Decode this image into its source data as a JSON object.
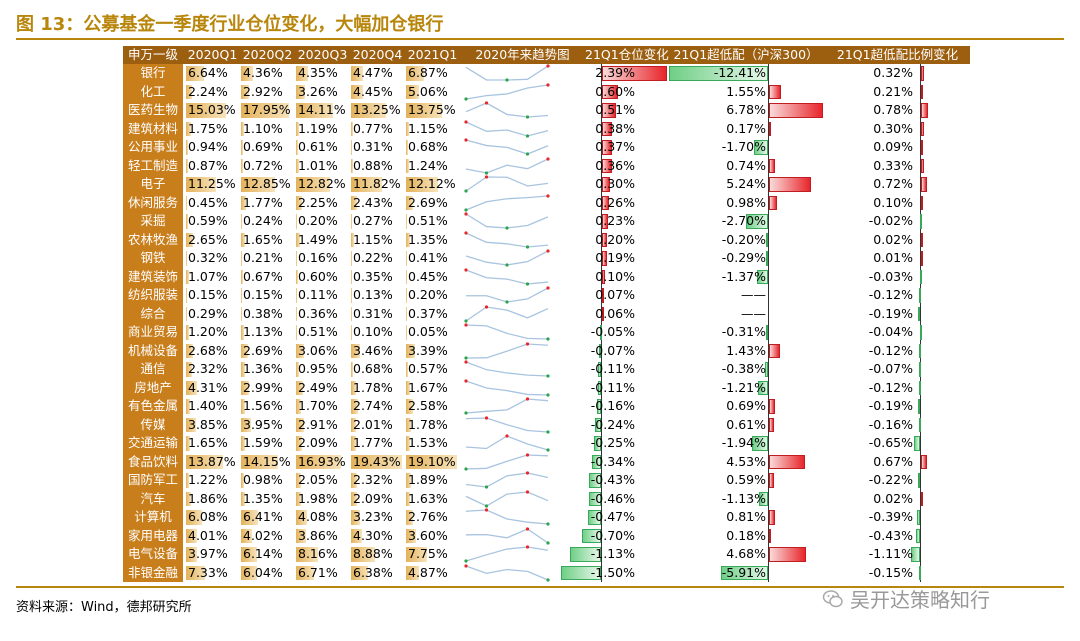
{
  "title": "图 13：公募基金一季度行业仓位变化，大幅加仓银行",
  "source": "资料来源：Wind，德邦研究所",
  "watermark": "吴开达策略知行",
  "headers": [
    "申万一级",
    "2020Q1",
    "2020Q2",
    "2020Q3",
    "2020Q4",
    "2021Q1",
    "2020年来趋势图",
    "21Q1仓位变化",
    "21Q1超低配（沪深300）",
    "21Q1超低配比例变化"
  ],
  "colors": {
    "header_bg": "#9c5f10",
    "industry_bg": "#c97e1c",
    "quarter_bar": "#e3b25a",
    "positive_bar": "#e8262b",
    "negative_bar": "#6fcf86",
    "trend_line": "#a8c4e0",
    "trend_max": "#e8262b",
    "trend_min": "#2ca44e"
  },
  "rows": [
    {
      "name": "银行",
      "q": [
        "6.64%",
        "4.36%",
        "4.35%",
        "4.47%",
        "6.87%"
      ],
      "qv": [
        6.64,
        4.36,
        4.35,
        4.47,
        6.87
      ],
      "chg": "2.39%",
      "chg_v": 2.39,
      "ow": "-12.41%",
      "ow_v": -12.41,
      "owc": "0.32%",
      "owc_v": 0.32
    },
    {
      "name": "化工",
      "q": [
        "2.24%",
        "2.92%",
        "3.26%",
        "4.45%",
        "5.06%"
      ],
      "qv": [
        2.24,
        2.92,
        3.26,
        4.45,
        5.06
      ],
      "chg": "0.60%",
      "chg_v": 0.6,
      "ow": "1.55%",
      "ow_v": 1.55,
      "owc": "0.21%",
      "owc_v": 0.21
    },
    {
      "name": "医药生物",
      "q": [
        "15.03%",
        "17.95%",
        "14.11%",
        "13.25%",
        "13.75%"
      ],
      "qv": [
        15.03,
        17.95,
        14.11,
        13.25,
        13.75
      ],
      "chg": "0.51%",
      "chg_v": 0.51,
      "ow": "6.78%",
      "ow_v": 6.78,
      "owc": "0.78%",
      "owc_v": 0.78
    },
    {
      "name": "建筑材料",
      "q": [
        "1.75%",
        "1.10%",
        "1.19%",
        "0.77%",
        "1.15%"
      ],
      "qv": [
        1.75,
        1.1,
        1.19,
        0.77,
        1.15
      ],
      "chg": "0.38%",
      "chg_v": 0.38,
      "ow": "0.17%",
      "ow_v": 0.17,
      "owc": "0.30%",
      "owc_v": 0.3
    },
    {
      "name": "公用事业",
      "q": [
        "0.94%",
        "0.69%",
        "0.61%",
        "0.31%",
        "0.68%"
      ],
      "qv": [
        0.94,
        0.69,
        0.61,
        0.31,
        0.68
      ],
      "chg": "0.37%",
      "chg_v": 0.37,
      "ow": "-1.70%",
      "ow_v": -1.7,
      "owc": "0.09%",
      "owc_v": 0.09
    },
    {
      "name": "轻工制造",
      "q": [
        "0.87%",
        "0.72%",
        "1.01%",
        "0.88%",
        "1.24%"
      ],
      "qv": [
        0.87,
        0.72,
        1.01,
        0.88,
        1.24
      ],
      "chg": "0.36%",
      "chg_v": 0.36,
      "ow": "0.74%",
      "ow_v": 0.74,
      "owc": "0.33%",
      "owc_v": 0.33
    },
    {
      "name": "电子",
      "q": [
        "11.25%",
        "12.85%",
        "12.82%",
        "11.82%",
        "12.12%"
      ],
      "qv": [
        11.25,
        12.85,
        12.82,
        11.82,
        12.12
      ],
      "chg": "0.30%",
      "chg_v": 0.3,
      "ow": "5.24%",
      "ow_v": 5.24,
      "owc": "0.72%",
      "owc_v": 0.72
    },
    {
      "name": "休闲服务",
      "q": [
        "0.45%",
        "1.77%",
        "2.25%",
        "2.43%",
        "2.69%"
      ],
      "qv": [
        0.45,
        1.77,
        2.25,
        2.43,
        2.69
      ],
      "chg": "0.26%",
      "chg_v": 0.26,
      "ow": "0.98%",
      "ow_v": 0.98,
      "owc": "0.10%",
      "owc_v": 0.1
    },
    {
      "name": "采掘",
      "q": [
        "0.59%",
        "0.24%",
        "0.20%",
        "0.27%",
        "0.51%"
      ],
      "qv": [
        0.59,
        0.24,
        0.2,
        0.27,
        0.51
      ],
      "chg": "0.23%",
      "chg_v": 0.23,
      "ow": "-2.70%",
      "ow_v": -2.7,
      "owc": "-0.02%",
      "owc_v": -0.02
    },
    {
      "name": "农林牧渔",
      "q": [
        "2.65%",
        "1.65%",
        "1.49%",
        "1.15%",
        "1.35%"
      ],
      "qv": [
        2.65,
        1.65,
        1.49,
        1.15,
        1.35
      ],
      "chg": "0.20%",
      "chg_v": 0.2,
      "ow": "-0.20%",
      "ow_v": -0.2,
      "owc": "0.02%",
      "owc_v": 0.02
    },
    {
      "name": "钢铁",
      "q": [
        "0.32%",
        "0.21%",
        "0.16%",
        "0.22%",
        "0.41%"
      ],
      "qv": [
        0.32,
        0.21,
        0.16,
        0.22,
        0.41
      ],
      "chg": "0.19%",
      "chg_v": 0.19,
      "ow": "-0.29%",
      "ow_v": -0.29,
      "owc": "0.01%",
      "owc_v": 0.01
    },
    {
      "name": "建筑装饰",
      "q": [
        "1.07%",
        "0.67%",
        "0.60%",
        "0.35%",
        "0.45%"
      ],
      "qv": [
        1.07,
        0.67,
        0.6,
        0.35,
        0.45
      ],
      "chg": "0.10%",
      "chg_v": 0.1,
      "ow": "-1.37%",
      "ow_v": -1.37,
      "owc": "-0.03%",
      "owc_v": -0.03
    },
    {
      "name": "纺织服装",
      "q": [
        "0.15%",
        "0.15%",
        "0.11%",
        "0.13%",
        "0.20%"
      ],
      "qv": [
        0.15,
        0.15,
        0.11,
        0.13,
        0.2
      ],
      "chg": "0.07%",
      "chg_v": 0.07,
      "ow": "——",
      "ow_v": 0,
      "owc": "-0.12%",
      "owc_v": -0.12
    },
    {
      "name": "综合",
      "q": [
        "0.29%",
        "0.38%",
        "0.36%",
        "0.31%",
        "0.37%"
      ],
      "qv": [
        0.29,
        0.38,
        0.36,
        0.31,
        0.37
      ],
      "chg": "0.06%",
      "chg_v": 0.06,
      "ow": "——",
      "ow_v": 0,
      "owc": "-0.19%",
      "owc_v": -0.19
    },
    {
      "name": "商业贸易",
      "q": [
        "1.20%",
        "1.13%",
        "0.51%",
        "0.10%",
        "0.05%"
      ],
      "qv": [
        1.2,
        1.13,
        0.51,
        0.1,
        0.05
      ],
      "chg": "-0.05%",
      "chg_v": -0.05,
      "ow": "-0.31%",
      "ow_v": -0.31,
      "owc": "-0.04%",
      "owc_v": -0.04
    },
    {
      "name": "机械设备",
      "q": [
        "2.68%",
        "2.69%",
        "3.06%",
        "3.46%",
        "3.39%"
      ],
      "qv": [
        2.68,
        2.69,
        3.06,
        3.46,
        3.39
      ],
      "chg": "-0.07%",
      "chg_v": -0.07,
      "ow": "1.43%",
      "ow_v": 1.43,
      "owc": "-0.12%",
      "owc_v": -0.12
    },
    {
      "name": "通信",
      "q": [
        "2.32%",
        "1.36%",
        "0.95%",
        "0.68%",
        "0.57%"
      ],
      "qv": [
        2.32,
        1.36,
        0.95,
        0.68,
        0.57
      ],
      "chg": "-0.11%",
      "chg_v": -0.11,
      "ow": "-0.38%",
      "ow_v": -0.38,
      "owc": "-0.07%",
      "owc_v": -0.07
    },
    {
      "name": "房地产",
      "q": [
        "4.31%",
        "2.99%",
        "2.49%",
        "1.78%",
        "1.67%"
      ],
      "qv": [
        4.31,
        2.99,
        2.49,
        1.78,
        1.67
      ],
      "chg": "-0.11%",
      "chg_v": -0.11,
      "ow": "-1.21%",
      "ow_v": -1.21,
      "owc": "-0.12%",
      "owc_v": -0.12
    },
    {
      "name": "有色金属",
      "q": [
        "1.40%",
        "1.56%",
        "1.70%",
        "2.74%",
        "2.58%"
      ],
      "qv": [
        1.4,
        1.56,
        1.7,
        2.74,
        2.58
      ],
      "chg": "-0.16%",
      "chg_v": -0.16,
      "ow": "0.69%",
      "ow_v": 0.69,
      "owc": "-0.19%",
      "owc_v": -0.19
    },
    {
      "name": "传媒",
      "q": [
        "3.85%",
        "3.95%",
        "2.91%",
        "2.01%",
        "1.78%"
      ],
      "qv": [
        3.85,
        3.95,
        2.91,
        2.01,
        1.78
      ],
      "chg": "-0.24%",
      "chg_v": -0.24,
      "ow": "0.61%",
      "ow_v": 0.61,
      "owc": "-0.16%",
      "owc_v": -0.16
    },
    {
      "name": "交通运输",
      "q": [
        "1.65%",
        "1.59%",
        "2.09%",
        "1.77%",
        "1.53%"
      ],
      "qv": [
        1.65,
        1.59,
        2.09,
        1.77,
        1.53
      ],
      "chg": "-0.25%",
      "chg_v": -0.25,
      "ow": "-1.94%",
      "ow_v": -1.94,
      "owc": "-0.65%",
      "owc_v": -0.65
    },
    {
      "name": "食品饮料",
      "q": [
        "13.87%",
        "14.15%",
        "16.93%",
        "19.43%",
        "19.10%"
      ],
      "qv": [
        13.87,
        14.15,
        16.93,
        19.43,
        19.1
      ],
      "chg": "-0.34%",
      "chg_v": -0.34,
      "ow": "4.53%",
      "ow_v": 4.53,
      "owc": "0.67%",
      "owc_v": 0.67
    },
    {
      "name": "国防军工",
      "q": [
        "1.22%",
        "0.98%",
        "2.05%",
        "2.32%",
        "1.89%"
      ],
      "qv": [
        1.22,
        0.98,
        2.05,
        2.32,
        1.89
      ],
      "chg": "-0.43%",
      "chg_v": -0.43,
      "ow": "0.59%",
      "ow_v": 0.59,
      "owc": "-0.22%",
      "owc_v": -0.22
    },
    {
      "name": "汽车",
      "q": [
        "1.86%",
        "1.35%",
        "1.98%",
        "2.09%",
        "1.63%"
      ],
      "qv": [
        1.86,
        1.35,
        1.98,
        2.09,
        1.63
      ],
      "chg": "-0.46%",
      "chg_v": -0.46,
      "ow": "-1.13%",
      "ow_v": -1.13,
      "owc": "0.02%",
      "owc_v": 0.02
    },
    {
      "name": "计算机",
      "q": [
        "6.08%",
        "6.41%",
        "4.08%",
        "3.23%",
        "2.76%"
      ],
      "qv": [
        6.08,
        6.41,
        4.08,
        3.23,
        2.76
      ],
      "chg": "-0.47%",
      "chg_v": -0.47,
      "ow": "0.81%",
      "ow_v": 0.81,
      "owc": "-0.39%",
      "owc_v": -0.39
    },
    {
      "name": "家用电器",
      "q": [
        "4.01%",
        "4.02%",
        "3.86%",
        "4.30%",
        "3.60%"
      ],
      "qv": [
        4.01,
        4.02,
        3.86,
        4.3,
        3.6
      ],
      "chg": "-0.70%",
      "chg_v": -0.7,
      "ow": "0.18%",
      "ow_v": 0.18,
      "owc": "-0.43%",
      "owc_v": -0.43
    },
    {
      "name": "电气设备",
      "q": [
        "3.97%",
        "6.14%",
        "8.16%",
        "8.88%",
        "7.75%"
      ],
      "qv": [
        3.97,
        6.14,
        8.16,
        8.88,
        7.75
      ],
      "chg": "-1.13%",
      "chg_v": -1.13,
      "ow": "4.68%",
      "ow_v": 4.68,
      "owc": "-1.11%",
      "owc_v": -1.11
    },
    {
      "name": "非银金融",
      "q": [
        "7.33%",
        "6.04%",
        "6.71%",
        "6.38%",
        "4.87%"
      ],
      "qv": [
        7.33,
        6.04,
        6.71,
        6.38,
        4.87
      ],
      "chg": "-1.50%",
      "chg_v": -1.5,
      "ow": "-5.91%",
      "ow_v": -5.91,
      "owc": "-0.15%",
      "owc_v": -0.15
    }
  ]
}
